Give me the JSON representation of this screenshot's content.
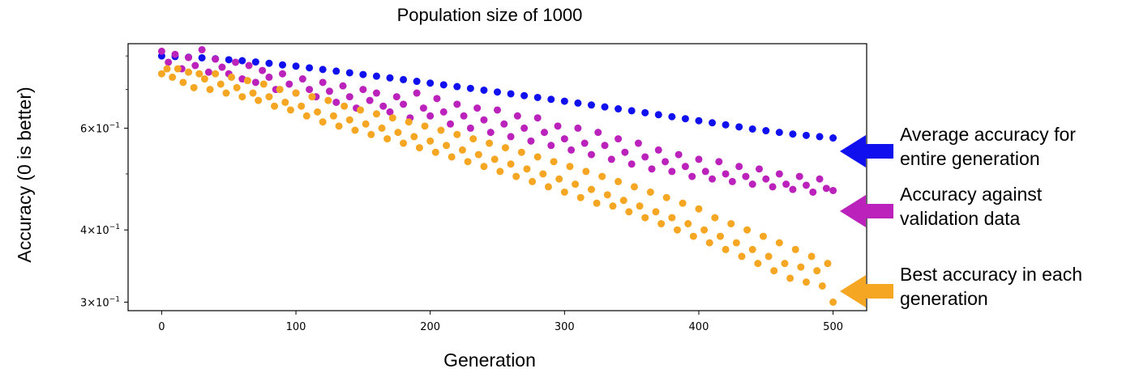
{
  "chart_data": {
    "type": "scatter",
    "title": "Population size of 1000",
    "xlabel": "Generation",
    "ylabel": "Accuracy (0 is better)",
    "xlim": [
      -25,
      525
    ],
    "ylim": [
      0.29,
      0.84
    ],
    "yscale": "log",
    "grid": false,
    "x_ticks": [
      0,
      100,
      200,
      300,
      400,
      500
    ],
    "x_tick_labels": [
      "0",
      "100",
      "200",
      "300",
      "400",
      "500"
    ],
    "y_ticks": [
      0.3,
      0.4,
      0.6
    ],
    "y_tick_labels": [
      {
        "base": "3",
        "exp": "−1"
      },
      {
        "base": "4",
        "exp": "−1"
      },
      {
        "base": "6",
        "exp": "−1"
      }
    ],
    "series": [
      {
        "key": "average",
        "color": "#1010ee",
        "annotation": [
          "Average accuracy for",
          "entire generation"
        ],
        "points": [
          [
            0,
            0.8
          ],
          [
            10,
            0.798
          ],
          [
            20,
            0.796
          ],
          [
            30,
            0.794
          ],
          [
            40,
            0.791
          ],
          [
            50,
            0.788
          ],
          [
            60,
            0.785
          ],
          [
            70,
            0.781
          ],
          [
            80,
            0.777
          ],
          [
            90,
            0.772
          ],
          [
            100,
            0.768
          ],
          [
            110,
            0.763
          ],
          [
            120,
            0.758
          ],
          [
            130,
            0.753
          ],
          [
            140,
            0.748
          ],
          [
            150,
            0.743
          ],
          [
            160,
            0.738
          ],
          [
            170,
            0.733
          ],
          [
            180,
            0.728
          ],
          [
            190,
            0.723
          ],
          [
            200,
            0.718
          ],
          [
            210,
            0.713
          ],
          [
            220,
            0.708
          ],
          [
            230,
            0.703
          ],
          [
            240,
            0.698
          ],
          [
            250,
            0.693
          ],
          [
            260,
            0.688
          ],
          [
            270,
            0.683
          ],
          [
            280,
            0.678
          ],
          [
            290,
            0.673
          ],
          [
            300,
            0.668
          ],
          [
            310,
            0.663
          ],
          [
            320,
            0.658
          ],
          [
            330,
            0.653
          ],
          [
            340,
            0.648
          ],
          [
            350,
            0.643
          ],
          [
            360,
            0.638
          ],
          [
            370,
            0.633
          ],
          [
            380,
            0.628
          ],
          [
            390,
            0.623
          ],
          [
            400,
            0.618
          ],
          [
            410,
            0.613
          ],
          [
            420,
            0.608
          ],
          [
            430,
            0.603
          ],
          [
            440,
            0.598
          ],
          [
            450,
            0.594
          ],
          [
            460,
            0.59
          ],
          [
            470,
            0.586
          ],
          [
            480,
            0.583
          ],
          [
            490,
            0.58
          ],
          [
            500,
            0.577
          ]
        ]
      },
      {
        "key": "validation",
        "color": "#bb22bb",
        "annotation": [
          "Accuracy against",
          "validation data"
        ],
        "points": [
          [
            0,
            0.815
          ],
          [
            5,
            0.78
          ],
          [
            10,
            0.805
          ],
          [
            15,
            0.76
          ],
          [
            20,
            0.795
          ],
          [
            25,
            0.77
          ],
          [
            30,
            0.82
          ],
          [
            35,
            0.75
          ],
          [
            40,
            0.79
          ],
          [
            45,
            0.765
          ],
          [
            50,
            0.745
          ],
          [
            55,
            0.78
          ],
          [
            60,
            0.73
          ],
          [
            65,
            0.77
          ],
          [
            70,
            0.72
          ],
          [
            75,
            0.755
          ],
          [
            80,
            0.735
          ],
          [
            85,
            0.7
          ],
          [
            90,
            0.745
          ],
          [
            95,
            0.715
          ],
          [
            100,
            0.69
          ],
          [
            105,
            0.73
          ],
          [
            110,
            0.7
          ],
          [
            115,
            0.68
          ],
          [
            120,
            0.72
          ],
          [
            125,
            0.695
          ],
          [
            130,
            0.665
          ],
          [
            135,
            0.71
          ],
          [
            140,
            0.68
          ],
          [
            145,
            0.65
          ],
          [
            150,
            0.7
          ],
          [
            155,
            0.67
          ],
          [
            160,
            0.69
          ],
          [
            165,
            0.655
          ],
          [
            170,
            0.64
          ],
          [
            175,
            0.68
          ],
          [
            180,
            0.66
          ],
          [
            185,
            0.625
          ],
          [
            190,
            0.69
          ],
          [
            195,
            0.65
          ],
          [
            200,
            0.63
          ],
          [
            205,
            0.675
          ],
          [
            210,
            0.64
          ],
          [
            215,
            0.61
          ],
          [
            220,
            0.66
          ],
          [
            225,
            0.63
          ],
          [
            230,
            0.6
          ],
          [
            235,
            0.65
          ],
          [
            240,
            0.62
          ],
          [
            245,
            0.59
          ],
          [
            250,
            0.645
          ],
          [
            255,
            0.61
          ],
          [
            260,
            0.58
          ],
          [
            265,
            0.63
          ],
          [
            270,
            0.6
          ],
          [
            275,
            0.57
          ],
          [
            280,
            0.625
          ],
          [
            285,
            0.59
          ],
          [
            290,
            0.56
          ],
          [
            295,
            0.605
          ],
          [
            300,
            0.575
          ],
          [
            305,
            0.55
          ],
          [
            310,
            0.6
          ],
          [
            315,
            0.565
          ],
          [
            320,
            0.54
          ],
          [
            325,
            0.59
          ],
          [
            330,
            0.56
          ],
          [
            335,
            0.53
          ],
          [
            340,
            0.575
          ],
          [
            345,
            0.545
          ],
          [
            350,
            0.52
          ],
          [
            355,
            0.565
          ],
          [
            360,
            0.535
          ],
          [
            365,
            0.51
          ],
          [
            370,
            0.55
          ],
          [
            375,
            0.525
          ],
          [
            380,
            0.505
          ],
          [
            385,
            0.54
          ],
          [
            390,
            0.515
          ],
          [
            395,
            0.495
          ],
          [
            400,
            0.53
          ],
          [
            405,
            0.505
          ],
          [
            410,
            0.49
          ],
          [
            415,
            0.525
          ],
          [
            420,
            0.5
          ],
          [
            425,
            0.485
          ],
          [
            430,
            0.515
          ],
          [
            435,
            0.495
          ],
          [
            440,
            0.48
          ],
          [
            445,
            0.51
          ],
          [
            450,
            0.49
          ],
          [
            455,
            0.475
          ],
          [
            460,
            0.5
          ],
          [
            465,
            0.48
          ],
          [
            470,
            0.47
          ],
          [
            475,
            0.495
          ],
          [
            480,
            0.478
          ],
          [
            485,
            0.465
          ],
          [
            490,
            0.49
          ],
          [
            495,
            0.472
          ],
          [
            500,
            0.468
          ]
        ]
      },
      {
        "key": "best",
        "color": "#f5a623",
        "annotation": [
          "Best accuracy in each",
          "generation"
        ],
        "points": [
          [
            0,
            0.745
          ],
          [
            4,
            0.76
          ],
          [
            8,
            0.735
          ],
          [
            12,
            0.76
          ],
          [
            16,
            0.72
          ],
          [
            20,
            0.75
          ],
          [
            24,
            0.705
          ],
          [
            28,
            0.745
          ],
          [
            32,
            0.73
          ],
          [
            36,
            0.7
          ],
          [
            40,
            0.745
          ],
          [
            44,
            0.715
          ],
          [
            48,
            0.69
          ],
          [
            52,
            0.735
          ],
          [
            56,
            0.705
          ],
          [
            60,
            0.68
          ],
          [
            64,
            0.725
          ],
          [
            68,
            0.69
          ],
          [
            72,
            0.67
          ],
          [
            76,
            0.715
          ],
          [
            80,
            0.68
          ],
          [
            84,
            0.655
          ],
          [
            88,
            0.7
          ],
          [
            92,
            0.665
          ],
          [
            96,
            0.645
          ],
          [
            100,
            0.69
          ],
          [
            104,
            0.655
          ],
          [
            108,
            0.63
          ],
          [
            112,
            0.68
          ],
          [
            116,
            0.64
          ],
          [
            120,
            0.615
          ],
          [
            124,
            0.67
          ],
          [
            128,
            0.63
          ],
          [
            132,
            0.605
          ],
          [
            136,
            0.655
          ],
          [
            140,
            0.62
          ],
          [
            144,
            0.595
          ],
          [
            148,
            0.645
          ],
          [
            152,
            0.61
          ],
          [
            156,
            0.585
          ],
          [
            160,
            0.635
          ],
          [
            164,
            0.6
          ],
          [
            168,
            0.575
          ],
          [
            172,
            0.625
          ],
          [
            176,
            0.59
          ],
          [
            180,
            0.565
          ],
          [
            184,
            0.615
          ],
          [
            188,
            0.58
          ],
          [
            192,
            0.555
          ],
          [
            196,
            0.605
          ],
          [
            200,
            0.57
          ],
          [
            204,
            0.545
          ],
          [
            208,
            0.595
          ],
          [
            212,
            0.56
          ],
          [
            216,
            0.535
          ],
          [
            220,
            0.585
          ],
          [
            224,
            0.55
          ],
          [
            228,
            0.525
          ],
          [
            232,
            0.575
          ],
          [
            236,
            0.54
          ],
          [
            240,
            0.515
          ],
          [
            244,
            0.565
          ],
          [
            248,
            0.53
          ],
          [
            252,
            0.505
          ],
          [
            256,
            0.555
          ],
          [
            260,
            0.52
          ],
          [
            264,
            0.495
          ],
          [
            268,
            0.545
          ],
          [
            272,
            0.51
          ],
          [
            276,
            0.485
          ],
          [
            280,
            0.535
          ],
          [
            284,
            0.5
          ],
          [
            288,
            0.475
          ],
          [
            292,
            0.525
          ],
          [
            296,
            0.49
          ],
          [
            300,
            0.465
          ],
          [
            304,
            0.515
          ],
          [
            308,
            0.48
          ],
          [
            312,
            0.455
          ],
          [
            316,
            0.505
          ],
          [
            320,
            0.47
          ],
          [
            324,
            0.445
          ],
          [
            328,
            0.495
          ],
          [
            332,
            0.46
          ],
          [
            336,
            0.44
          ],
          [
            340,
            0.485
          ],
          [
            344,
            0.45
          ],
          [
            348,
            0.43
          ],
          [
            352,
            0.475
          ],
          [
            356,
            0.44
          ],
          [
            360,
            0.42
          ],
          [
            364,
            0.465
          ],
          [
            368,
            0.43
          ],
          [
            372,
            0.41
          ],
          [
            376,
            0.455
          ],
          [
            380,
            0.42
          ],
          [
            384,
            0.4
          ],
          [
            388,
            0.445
          ],
          [
            392,
            0.41
          ],
          [
            396,
            0.39
          ],
          [
            400,
            0.435
          ],
          [
            404,
            0.4
          ],
          [
            408,
            0.38
          ],
          [
            412,
            0.42
          ],
          [
            416,
            0.39
          ],
          [
            420,
            0.37
          ],
          [
            424,
            0.41
          ],
          [
            428,
            0.38
          ],
          [
            432,
            0.36
          ],
          [
            436,
            0.4
          ],
          [
            440,
            0.37
          ],
          [
            444,
            0.35
          ],
          [
            448,
            0.39
          ],
          [
            452,
            0.36
          ],
          [
            456,
            0.34
          ],
          [
            460,
            0.38
          ],
          [
            464,
            0.35
          ],
          [
            468,
            0.33
          ],
          [
            472,
            0.37
          ],
          [
            476,
            0.345
          ],
          [
            480,
            0.325
          ],
          [
            484,
            0.36
          ],
          [
            488,
            0.34
          ],
          [
            492,
            0.32
          ],
          [
            496,
            0.35
          ],
          [
            500,
            0.3
          ]
        ]
      }
    ]
  }
}
